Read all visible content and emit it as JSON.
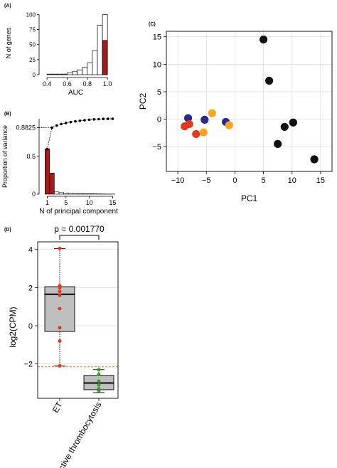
{
  "chart_data": [
    {
      "panel": "(A)",
      "type": "bar",
      "title": "",
      "xlabel": "AUC",
      "ylabel": "N of genes",
      "xlim": [
        0.35,
        1.02
      ],
      "ylim": [
        0,
        110
      ],
      "x_ticks": [
        "0.4",
        "0.6",
        "0.8",
        "1.0"
      ],
      "y_ticks": [
        "0",
        "25",
        "50",
        "75",
        "100"
      ],
      "bin_width": 0.05,
      "bins": [
        0.4,
        0.45,
        0.5,
        0.55,
        0.6,
        0.65,
        0.7,
        0.75,
        0.8,
        0.85,
        0.9,
        0.95
      ],
      "values": [
        1,
        1,
        1,
        1,
        3,
        5,
        8,
        12,
        20,
        40,
        82,
        100
      ],
      "highlight_bin": 0.975,
      "highlight_value": 57,
      "colors": {
        "bar": "#ffffff",
        "highlight": "#a11c1c"
      }
    },
    {
      "panel": "(B)",
      "type": "bar",
      "title": "",
      "xlabel": "N of principal component",
      "ylabel": "Proportion of variance",
      "xlim": [
        0,
        16
      ],
      "ylim": [
        0,
        1
      ],
      "x_ticks": [
        "1",
        "5",
        "10",
        "15"
      ],
      "y_ticks": [
        "0",
        "0.5",
        "0.8825"
      ],
      "values": [
        0.6,
        0.28,
        0.03,
        0.02,
        0.015,
        0.012,
        0.01,
        0.008,
        0.007,
        0.006,
        0.005,
        0.004,
        0.003,
        0.002,
        0.002
      ],
      "cumulative": [
        0.6,
        0.8825,
        0.91,
        0.93,
        0.945,
        0.956,
        0.966,
        0.974,
        0.981,
        0.987,
        0.992,
        0.995,
        0.998,
        0.999,
        1.0
      ],
      "colors": {
        "bar": "#a11c1c",
        "line": "#000000"
      }
    },
    {
      "panel": "(C)",
      "type": "scatter",
      "title": "",
      "xlabel": "PC1",
      "ylabel": "PC2",
      "xlim": [
        -12,
        17
      ],
      "ylim": [
        -9.5,
        16
      ],
      "x_ticks": [
        "-10",
        "-5",
        "0",
        "5",
        "10",
        "15"
      ],
      "y_ticks": [
        "-5",
        "0",
        "5",
        "10",
        "15"
      ],
      "grid": true,
      "points": [
        {
          "x": -8.2,
          "y": 0.2,
          "c": "#2e2a8c"
        },
        {
          "x": -8.8,
          "y": -1.3,
          "c": "#e03a1e"
        },
        {
          "x": -8.0,
          "y": -0.9,
          "c": "#e03a1e"
        },
        {
          "x": -6.8,
          "y": -2.7,
          "c": "#e03a1e"
        },
        {
          "x": -5.3,
          "y": -0.1,
          "c": "#2e2a8c"
        },
        {
          "x": -4.0,
          "y": 1.1,
          "c": "#f5a623"
        },
        {
          "x": -5.5,
          "y": -2.4,
          "c": "#f5a623"
        },
        {
          "x": -1.6,
          "y": -0.5,
          "c": "#2e2a8c"
        },
        {
          "x": -1.0,
          "y": -1.1,
          "c": "#f5a623"
        },
        {
          "x": 5.0,
          "y": 14.5,
          "c": "#111111"
        },
        {
          "x": 6.0,
          "y": 7.0,
          "c": "#111111"
        },
        {
          "x": 8.7,
          "y": -1.4,
          "c": "#111111"
        },
        {
          "x": 10.2,
          "y": -0.6,
          "c": "#111111"
        },
        {
          "x": 7.5,
          "y": -4.5,
          "c": "#111111"
        },
        {
          "x": 13.9,
          "y": -7.3,
          "c": "#111111"
        }
      ]
    },
    {
      "panel": "(D)",
      "type": "box",
      "title": "",
      "xlabel": "",
      "ylabel": "log2(CPM)",
      "ylim": [
        -3.8,
        4.4
      ],
      "y_ticks": [
        "-2",
        "0",
        "2",
        "4"
      ],
      "annotation": "p = 0.001770",
      "threshold": -2.15,
      "categories": [
        "ET",
        "reactive thrombocytosis"
      ],
      "boxes": [
        {
          "min": -2.1,
          "q1": -0.3,
          "median": 1.65,
          "q3": 2.05,
          "max": 4.05,
          "color": "#e03a1e",
          "points": [
            4.05,
            2.1,
            2.0,
            1.8,
            1.6,
            0.9,
            -0.1,
            -0.8,
            -2.1
          ]
        },
        {
          "min": -3.5,
          "q1": -3.35,
          "median": -3.0,
          "q3": -2.6,
          "max": -2.3,
          "color": "#3a9a2a",
          "points": [
            -2.3,
            -2.55,
            -2.9,
            -3.1,
            -3.3,
            -3.4
          ]
        }
      ],
      "colors": {
        "box": "#bfbfbf",
        "threshold_line": "#e8701a",
        "whisker": "#000000"
      }
    }
  ]
}
